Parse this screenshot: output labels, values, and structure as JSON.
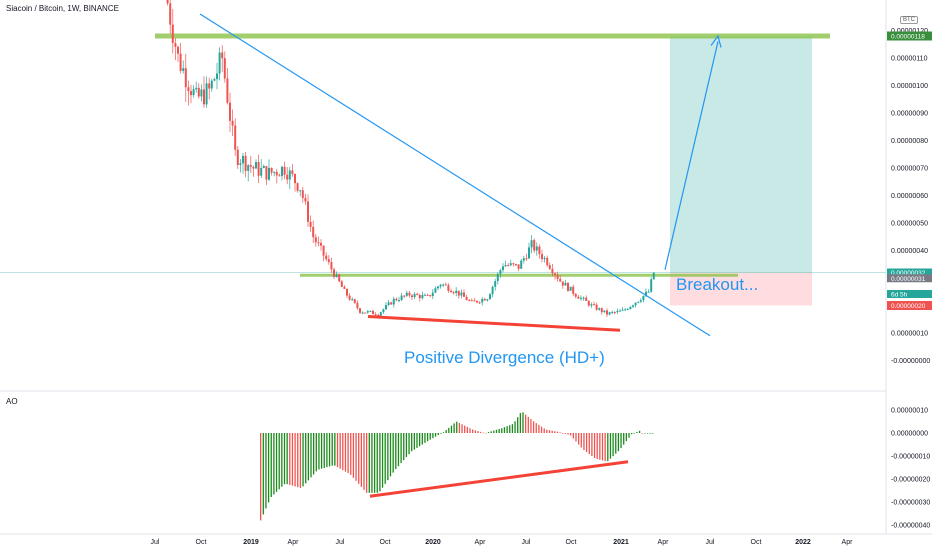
{
  "header": {
    "title": "Siacoin / Bitcoin, 1W, BINANCE",
    "currency_badge": "BTC"
  },
  "indicator": {
    "name": "AO"
  },
  "annotations": {
    "breakout": "Breakout...",
    "divergence": "Positive Divergence (HD+)"
  },
  "price_tags": [
    {
      "text": "0.00000118",
      "value": 1.18e-06,
      "color": "#388e3c"
    },
    {
      "text": "0.00000032",
      "value": 3.2e-07,
      "color": "#26a69a"
    },
    {
      "text": "6d 5h",
      "value": 2.95e-07,
      "color": "#26a69a"
    },
    {
      "text": "0.00000031",
      "value": 3.1e-07,
      "color": "#787b86"
    },
    {
      "text": "0.00000020",
      "value": 2e-07,
      "color": "#ef5350"
    }
  ],
  "colors": {
    "up": "#26a69a",
    "down": "#ef5350",
    "ao_up": "#1b8a1b",
    "ao_down": "#ef5350",
    "trendline": "#2196f3",
    "support": "#8bc34a",
    "divergence": "#f44336",
    "annotation_text": "#2196f3"
  },
  "chart_data": [
    {
      "type": "candlestick",
      "title": "Siacoin / Bitcoin, 1W, BINANCE",
      "x_ticks": [
        "Jul",
        "Oct",
        "2019",
        "Apr",
        "Jul",
        "Oct",
        "2020",
        "Apr",
        "Jul",
        "Oct",
        "2021",
        "Apr",
        "Jul",
        "Oct",
        "2022",
        "Apr"
      ],
      "y_ticks": [
        "0.00000130",
        "0.00000120",
        "0.00000110",
        "0.00000100",
        "0.00000090",
        "0.00000080",
        "0.00000070",
        "0.00000060",
        "0.00000050",
        "0.00000040",
        "0.00000030",
        "0.00000020",
        "0.00000010",
        "-0.00000000"
      ],
      "ylim": [
        -2e-08,
        1.35e-06
      ],
      "close_path_approx": [
        [
          0,
          1.35e-06
        ],
        [
          5,
          1.1e-06
        ],
        [
          12,
          9.5e-07
        ],
        [
          17,
          9.8e-07
        ],
        [
          22,
          1.1e-06
        ],
        [
          27,
          7.5e-07
        ],
        [
          34,
          7e-07
        ],
        [
          40,
          6.8e-07
        ],
        [
          46,
          7e-07
        ],
        [
          52,
          6.3e-07
        ],
        [
          57,
          4.5e-07
        ],
        [
          63,
          3.5e-07
        ],
        [
          69,
          2.5e-07
        ],
        [
          75,
          1.8e-07
        ],
        [
          82,
          1.7e-07
        ],
        [
          88,
          2.2e-07
        ],
        [
          94,
          2.4e-07
        ],
        [
          101,
          2.3e-07
        ],
        [
          106,
          2.8e-07
        ],
        [
          112,
          2.5e-07
        ],
        [
          118,
          2.1e-07
        ],
        [
          124,
          2.3e-07
        ],
        [
          130,
          3.5e-07
        ],
        [
          136,
          3.4e-07
        ],
        [
          141,
          4.2e-07
        ],
        [
          147,
          3.6e-07
        ],
        [
          152,
          2.9e-07
        ],
        [
          158,
          2.4e-07
        ],
        [
          164,
          2e-07
        ],
        [
          170,
          1.7e-07
        ],
        [
          176,
          1.8e-07
        ],
        [
          182,
          2.2e-07
        ],
        [
          186,
          2.5e-07
        ],
        [
          188,
          3.2e-07
        ]
      ],
      "lines": [
        {
          "name": "resistance",
          "value": 1.18e-06
        },
        {
          "name": "support",
          "value": 3.1e-07
        }
      ]
    },
    {
      "type": "bar",
      "title": "AO",
      "y_ticks": [
        "0.00000010",
        "0.00000000",
        "-0.00000010",
        "-0.00000020",
        "-0.00000030",
        "-0.00000040"
      ],
      "ylim": [
        -4.1e-07,
        1.3e-07
      ]
    }
  ]
}
